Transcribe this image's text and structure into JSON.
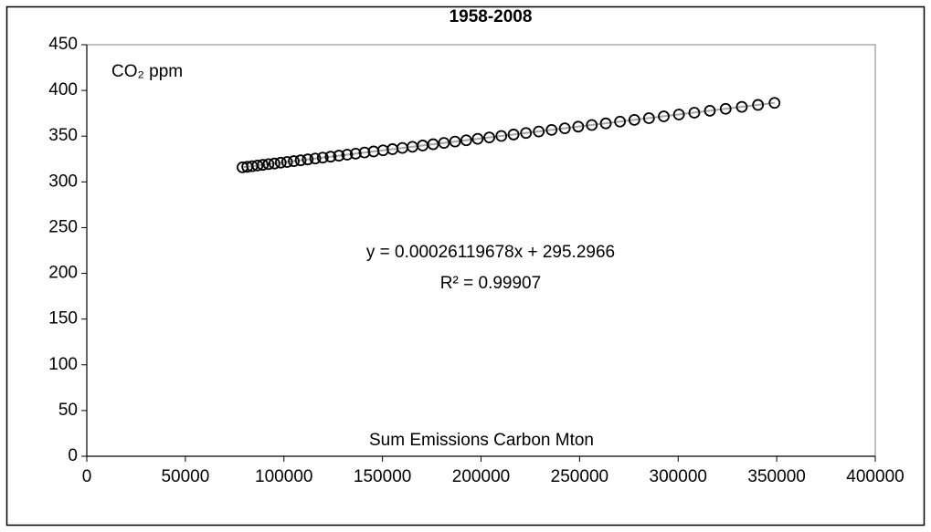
{
  "chart_data": {
    "type": "scatter",
    "title": "1958-2008",
    "ylabel": "CO₂ ppm",
    "xlabel": "Sum Emissions Carbon Mton",
    "x": [
      79000,
      81400,
      83900,
      86600,
      89300,
      92200,
      95200,
      98400,
      101600,
      105000,
      108500,
      112100,
      115900,
      119700,
      123700,
      127900,
      132100,
      136400,
      140900,
      145500,
      150300,
      155100,
      160100,
      165200,
      170400,
      175700,
      181200,
      186800,
      192500,
      198300,
      204200,
      210300,
      216500,
      222800,
      229300,
      235800,
      242500,
      249300,
      256200,
      263300,
      270500,
      277800,
      285200,
      292700,
      300400,
      308200,
      316100,
      324100,
      332300,
      340500,
      348900
    ],
    "values": [
      315.9,
      316.5,
      317.2,
      317.9,
      318.6,
      319.4,
      320.1,
      321.0,
      321.8,
      322.7,
      323.6,
      324.6,
      325.5,
      326.5,
      327.6,
      328.7,
      329.8,
      330.9,
      332.1,
      333.3,
      334.5,
      335.8,
      337.1,
      338.4,
      339.8,
      341.2,
      342.6,
      344.1,
      345.5,
      347.1,
      348.6,
      350.2,
      351.8,
      353.5,
      355.1,
      356.8,
      358.6,
      360.4,
      362.2,
      364.0,
      365.9,
      367.8,
      369.7,
      371.7,
      373.7,
      375.7,
      377.8,
      379.9,
      382.0,
      384.2,
      386.4
    ],
    "color": "#000000",
    "trendline": {
      "slope": 0.00026119678,
      "intercept": 295.2966,
      "color": "#a6a6a6",
      "equation": "y = 0.00026119678x + 295.2966",
      "r2_label": "R² = 0.99907"
    },
    "xlim": [
      0,
      400000
    ],
    "xticks": [
      0,
      50000,
      100000,
      150000,
      200000,
      250000,
      300000,
      350000,
      400000
    ],
    "ylim": [
      0,
      450
    ],
    "yticks": [
      0,
      50,
      100,
      150,
      200,
      250,
      300,
      350,
      400,
      450
    ],
    "grid": false
  }
}
